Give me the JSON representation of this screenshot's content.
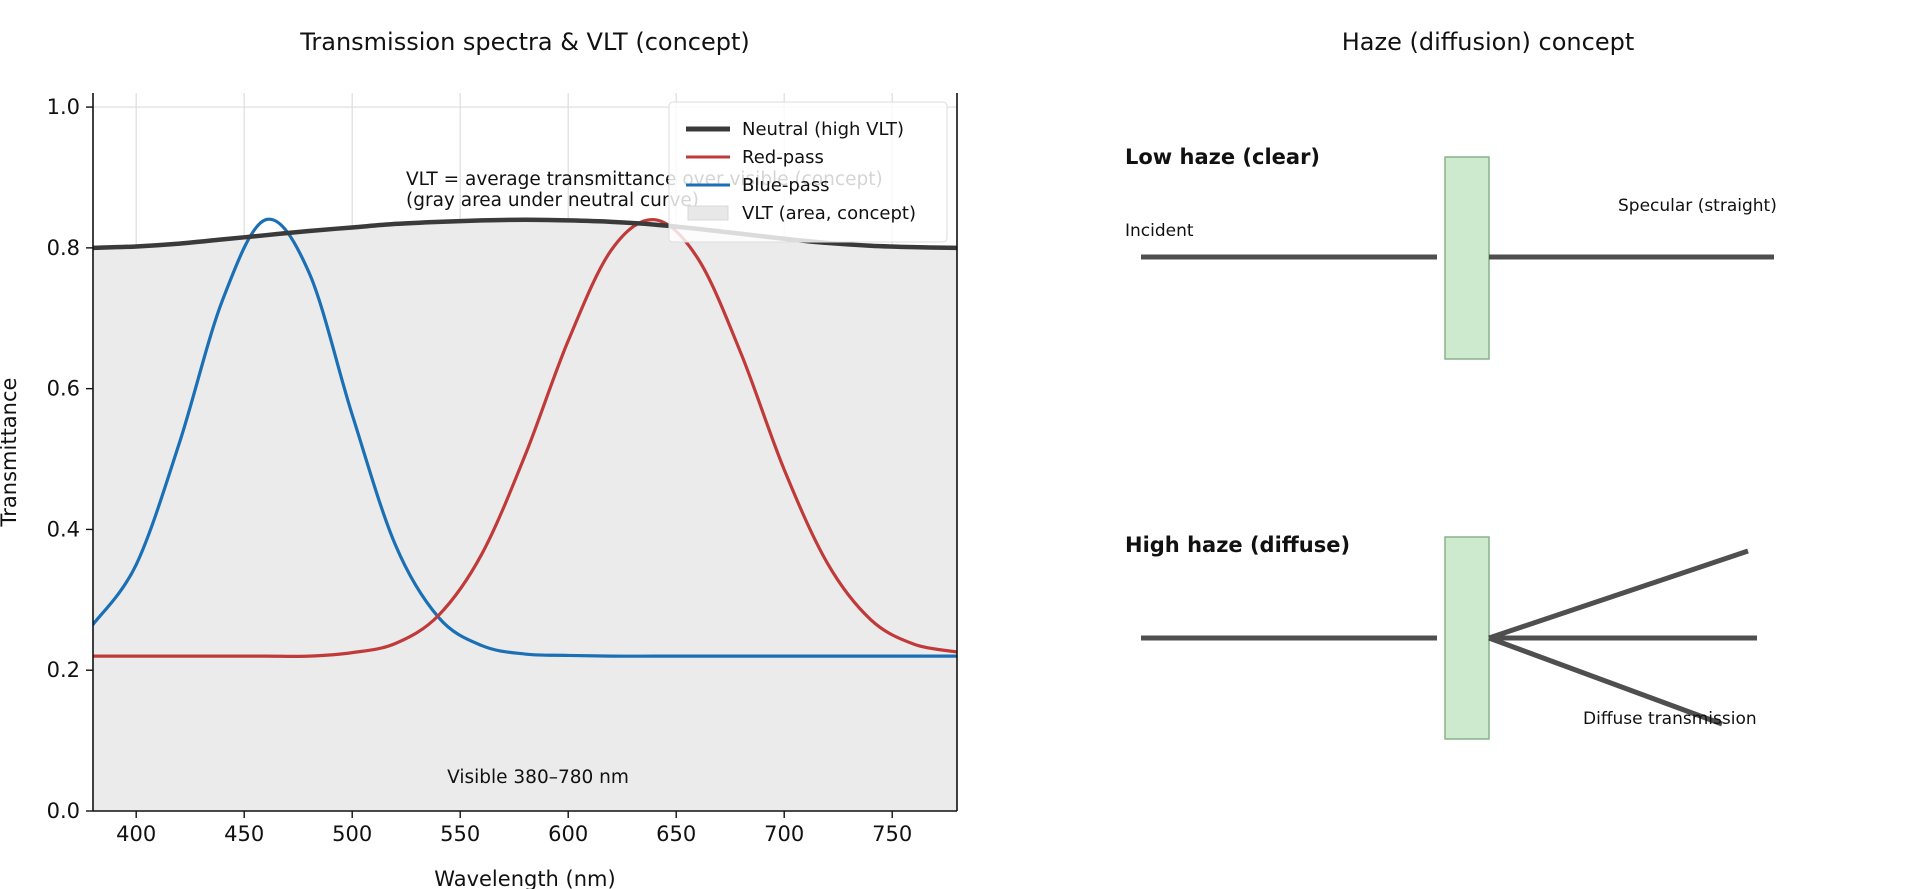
{
  "chart_data": [
    {
      "type": "line",
      "title": "Transmission spectra & VLT (concept)",
      "xlabel": "Wavelength (nm)",
      "ylabel": "Transmittance",
      "xlim": [
        380,
        780
      ],
      "ylim": [
        0.0,
        1.02
      ],
      "xticks": [
        400,
        450,
        500,
        550,
        600,
        650,
        700,
        750
      ],
      "xtick_labels": [
        "400",
        "450",
        "500",
        "550",
        "600",
        "650",
        "700",
        "750"
      ],
      "yticks": [
        0.0,
        0.2,
        0.4,
        0.6,
        0.8,
        1.0
      ],
      "ytick_labels": [
        "0.0",
        "0.2",
        "0.4",
        "0.6",
        "0.8",
        "1.0"
      ],
      "grid": true,
      "legend_position": "top-right",
      "x": [
        380,
        400,
        420,
        440,
        460,
        480,
        500,
        520,
        540,
        560,
        580,
        600,
        620,
        640,
        660,
        680,
        700,
        720,
        740,
        760,
        780
      ],
      "series": [
        {
          "name": "Neutral (high VLT)",
          "color": "#3a3a3a",
          "style": "line-thick",
          "values": [
            0.8,
            0.802,
            0.806,
            0.812,
            0.818,
            0.824,
            0.829,
            0.834,
            0.837,
            0.839,
            0.84,
            0.839,
            0.837,
            0.833,
            0.827,
            0.82,
            0.813,
            0.807,
            0.803,
            0.801,
            0.8
          ]
        },
        {
          "name": "Red-pass",
          "color": "#c03a3a",
          "style": "line",
          "values": [
            0.22,
            0.22,
            0.22,
            0.22,
            0.22,
            0.22,
            0.225,
            0.238,
            0.278,
            0.365,
            0.505,
            0.668,
            0.797,
            0.84,
            0.785,
            0.65,
            0.485,
            0.352,
            0.272,
            0.237,
            0.226
          ]
        },
        {
          "name": "Blue-pass",
          "color": "#1a6fb5",
          "style": "line",
          "values": [
            0.265,
            0.35,
            0.523,
            0.726,
            0.84,
            0.765,
            0.563,
            0.378,
            0.275,
            0.235,
            0.223,
            0.221,
            0.22,
            0.22,
            0.22,
            0.22,
            0.22,
            0.22,
            0.22,
            0.22,
            0.22
          ]
        },
        {
          "name": "VLT (area, concept)",
          "color": "#e8e8e8",
          "style": "area-under-neutral"
        }
      ],
      "annotations": [
        "VLT = average transmittance over visible (concept)",
        "(gray area under neutral curve)",
        "Visible 380–780 nm"
      ]
    },
    {
      "type": "diagram",
      "title": "Haze (diffusion) concept",
      "panels": [
        {
          "label": "Low haze (clear)",
          "incident_label": "Incident",
          "transmitted_label": "Specular (straight)",
          "outgoing_rays": 1
        },
        {
          "label": "High haze (diffuse)",
          "transmitted_label": "Diffuse transmission",
          "outgoing_rays": 3
        }
      ],
      "colors": {
        "arrow": "#4f4f4f",
        "film_fill": "#cdeacf",
        "film_edge": "#86b38c"
      }
    }
  ]
}
